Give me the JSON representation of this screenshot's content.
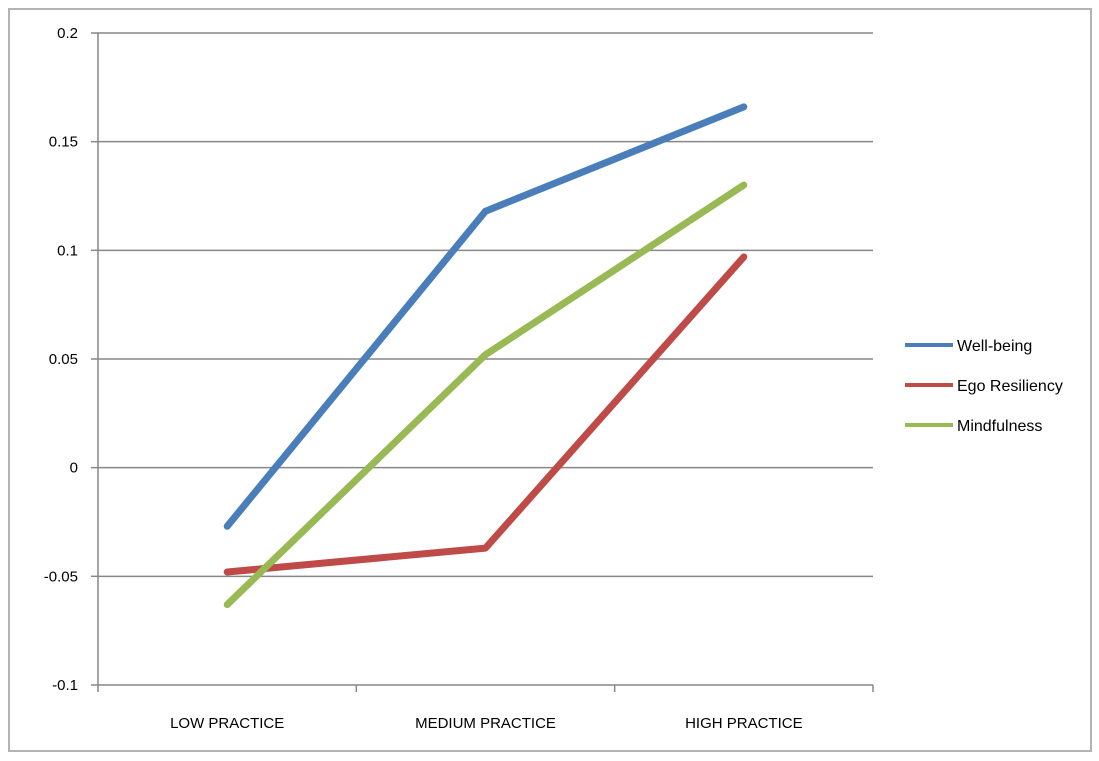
{
  "chart_data": {
    "type": "line",
    "title": "",
    "xlabel": "",
    "ylabel": "",
    "categories": [
      "LOW PRACTICE",
      "MEDIUM PRACTICE",
      "HIGH PRACTICE"
    ],
    "ylim": [
      -0.1,
      0.2
    ],
    "yticks": [
      -0.1,
      -0.05,
      0,
      0.05,
      0.1,
      0.15,
      0.2
    ],
    "ytick_labels": [
      "-0.1",
      "-0.05",
      "0",
      "0.05",
      "0.1",
      "0.15",
      "0.2"
    ],
    "grid": "horizontal major gridlines",
    "legend_position": "right",
    "series": [
      {
        "name": "Well-being",
        "color": "#4a7ebb",
        "values": [
          -0.027,
          0.118,
          0.166
        ]
      },
      {
        "name": "Ego Resiliency",
        "color": "#be4b48",
        "values": [
          -0.048,
          -0.037,
          0.097
        ]
      },
      {
        "name": "Mindfulness",
        "color": "#98b954",
        "values": [
          -0.063,
          0.052,
          0.13
        ]
      }
    ]
  }
}
